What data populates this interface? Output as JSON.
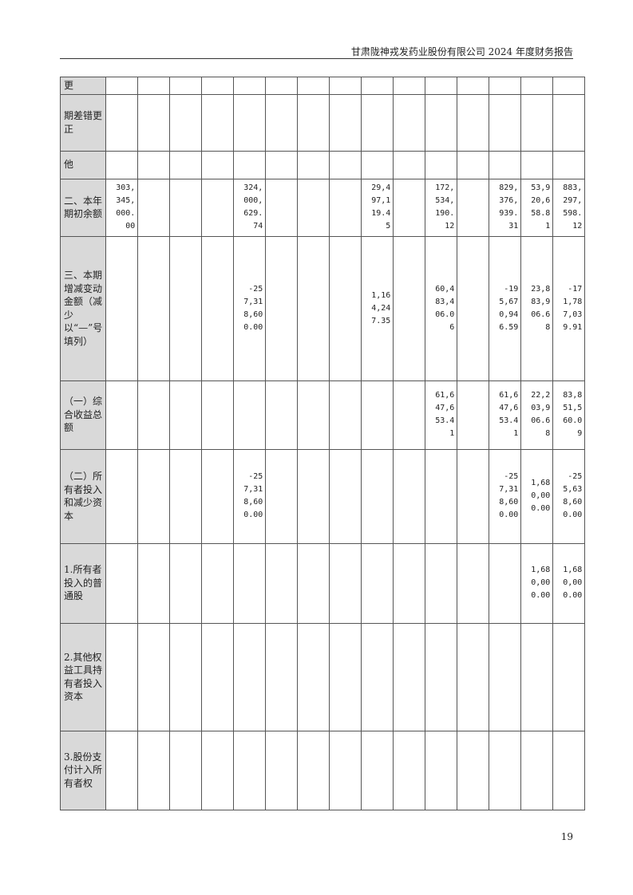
{
  "header": {
    "title": "甘肃陇神戎发药业股份有限公司 2024 年度财务报告"
  },
  "page_number": "19",
  "table": {
    "column_count": 15,
    "rows": [
      {
        "label": "更",
        "cells": {}
      },
      {
        "label": "期差错更正",
        "cells": {}
      },
      {
        "label": "他",
        "cells": {}
      },
      {
        "label": "二、本年期初余额",
        "cells": {
          "0": "303,345,000.00",
          "4": "324,000,629.74",
          "8": "29,497,119.45",
          "10": "172,534,190.12",
          "12": "829,376,939.31",
          "13": "53,920,658.81",
          "14": "883,297,598.12"
        }
      },
      {
        "label": "三、本期增减变动金额（减少以“—”号填列）",
        "cells": {
          "4": "-257,318,600.00",
          "8": "1,164,247.35",
          "10": "60,483,406.06",
          "12": "-195,670,946.59",
          "13": "23,883,906.68",
          "14": "-171,787,039.91"
        }
      },
      {
        "label": "（一）综合收益总额",
        "cells": {
          "10": "61,647,653.41",
          "12": "61,647,653.41",
          "13": "22,203,906.68",
          "14": "83,851,560.09"
        }
      },
      {
        "label": "（二）所有者投入和减少资本",
        "cells": {
          "4": "-257,318,600.00",
          "12": "-257,318,600.00",
          "13": "1,680,000.00",
          "14": "-255,638,600.00"
        }
      },
      {
        "label": "1.所有者投入的普通股",
        "cells": {
          "13": "1,680,000.00",
          "14": "1,680,000.00"
        }
      },
      {
        "label": "2.其他权益工具持有者投入资本",
        "cells": {}
      },
      {
        "label": "3.股份支付计入所有者权",
        "cells": {}
      }
    ]
  }
}
